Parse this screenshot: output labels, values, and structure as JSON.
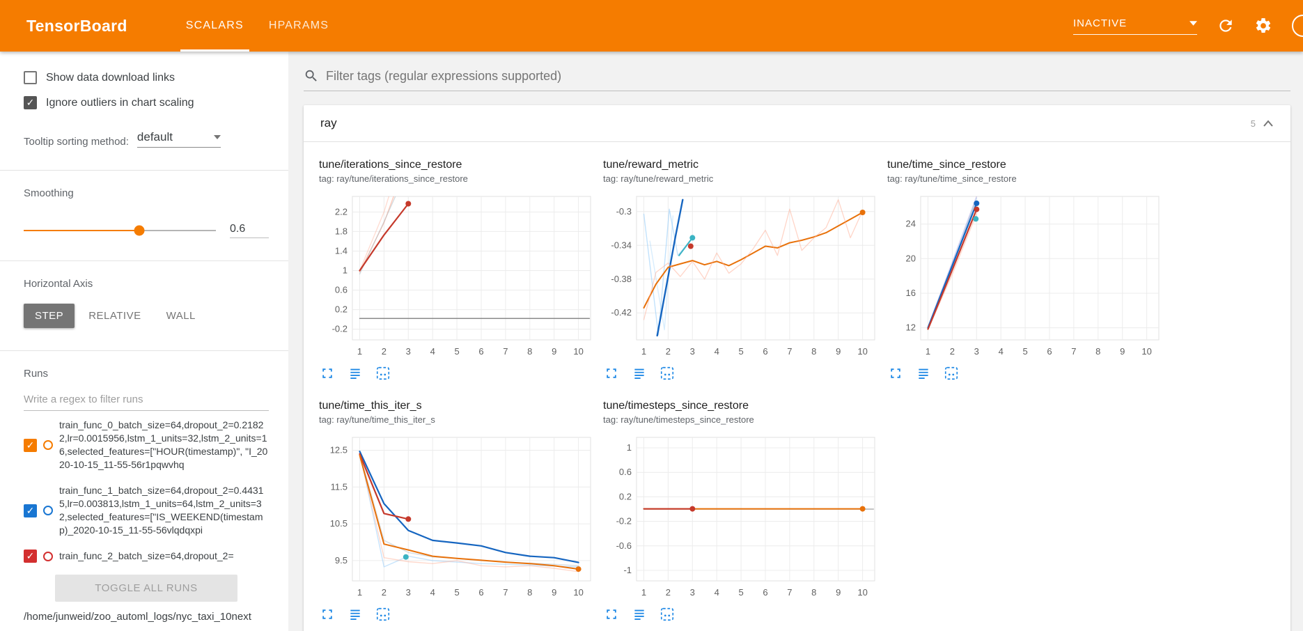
{
  "app": {
    "title": "TensorBoard",
    "tabs": [
      {
        "label": "SCALARS",
        "active": true
      },
      {
        "label": "HPARAMS",
        "active": false
      }
    ],
    "status_select": "INACTIVE"
  },
  "theme": {
    "header_bg": "#f57c00",
    "accent": "#f57c00",
    "icon_blue": "#1e88e5"
  },
  "sidebar": {
    "checkboxes": [
      {
        "label": "Show data download links",
        "checked": false
      },
      {
        "label": "Ignore outliers in chart scaling",
        "checked": true
      }
    ],
    "tooltip_sort": {
      "label": "Tooltip sorting method:",
      "value": "default"
    },
    "smoothing": {
      "label": "Smoothing",
      "value": "0.6"
    },
    "horizontal_axis": {
      "label": "Horizontal Axis",
      "options": [
        "STEP",
        "RELATIVE",
        "WALL"
      ],
      "selected": "STEP"
    },
    "runs": {
      "label": "Runs",
      "filter_placeholder": "Write a regex to filter runs",
      "items": [
        {
          "name": "train_func_0_batch_size=64,dropout_2=0.21822,lr=0.0015956,lstm_1_units=32,lstm_2_units=16,selected_features=[\"HOUR(timestamp)\", \"I_2020-10-15_11-55-56r1pqwvhq",
          "color": "#f57c00",
          "checked": true
        },
        {
          "name": "train_func_1_batch_size=64,dropout_2=0.44315,lr=0.003813,lstm_1_units=64,lstm_2_units=32,selected_features=[\"IS_WEEKEND(timestamp)_2020-10-15_11-55-56vlqdqxpi",
          "color": "#1976d2",
          "checked": true
        },
        {
          "name": "train_func_2_batch_size=64,dropout_2=",
          "color": "#d32f2f",
          "checked": true
        }
      ],
      "toggle_all_label": "TOGGLE ALL RUNS",
      "log_path": "/home/junweid/zoo_automl_logs/nyc_taxi_10next"
    }
  },
  "main": {
    "filter_placeholder": "Filter tags (regular expressions supported)",
    "section": {
      "name": "ray",
      "count": "5"
    }
  },
  "chart_data": [
    {
      "type": "line",
      "title": "tune/iterations_since_restore",
      "tag": "tag: ray/tune/iterations_since_restore",
      "grid": true,
      "xlim": [
        0.7,
        10.5
      ],
      "ylim": [
        -0.42,
        2.52
      ],
      "xticks": [
        "1",
        "2",
        "3",
        "4",
        "5",
        "6",
        "7",
        "8",
        "9",
        "10"
      ],
      "yticks": [
        "-0.2",
        "0.2",
        "0.6",
        "1",
        "1.4",
        "1.8",
        "2.2"
      ],
      "series": [
        {
          "name": "run0-raw",
          "color": "#ff8a65",
          "opacity": 0.45,
          "width": 1.4,
          "points": [
            [
              1,
              0.97
            ],
            [
              2,
              1.98
            ],
            [
              2.75,
              3
            ]
          ]
        },
        {
          "name": "run0-raw-b",
          "color": "#ffab91",
          "opacity": 0.4,
          "width": 1.4,
          "points": [
            [
              1,
              1
            ],
            [
              2,
              2.2
            ],
            [
              2.5,
              3
            ]
          ]
        },
        {
          "name": "run1-raw",
          "color": "#b0bec5",
          "opacity": 0.55,
          "width": 1.4,
          "points": [
            [
              1,
              0.93
            ],
            [
              2,
              2.0
            ],
            [
              2.9,
              3
            ]
          ]
        },
        {
          "name": "run0-smoothed",
          "color": "#c5392b",
          "opacity": 1,
          "width": 2.2,
          "points": [
            [
              1,
              1
            ],
            [
              2,
              1.73
            ],
            [
              3,
              2.37
            ]
          ]
        },
        {
          "name": "flat-run",
          "color": "#8a8a8a",
          "opacity": 1,
          "width": 1.5,
          "points": [
            [
              1,
              0.02
            ],
            [
              10.45,
              0.02
            ]
          ]
        }
      ],
      "markers": [
        {
          "x": 3,
          "y": 2.37,
          "color": "#c5392b"
        }
      ]
    },
    {
      "type": "line",
      "title": "tune/reward_metric",
      "tag": "tag: ray/tune/reward_metric",
      "grid": true,
      "xlim": [
        0.7,
        10.5
      ],
      "ylim": [
        -0.452,
        -0.282
      ],
      "xticks": [
        "1",
        "2",
        "3",
        "4",
        "5",
        "6",
        "7",
        "8",
        "9",
        "10"
      ],
      "yticks": [
        "-0.42",
        "-0.38",
        "-0.34",
        "-0.3"
      ],
      "series": [
        {
          "name": "run1-raw",
          "color": "#90caf9",
          "opacity": 0.55,
          "width": 1.4,
          "points": [
            [
              1,
              -0.303
            ],
            [
              1.6,
              -0.446
            ],
            [
              2.05,
              -0.297
            ],
            [
              2.4,
              -0.352
            ],
            [
              3,
              -0.331
            ]
          ]
        },
        {
          "name": "run1-raw-b",
          "color": "#90caf9",
          "opacity": 0.35,
          "width": 1.4,
          "points": [
            [
              1.25,
              -0.335
            ],
            [
              1.85,
              -0.44
            ],
            [
              2.2,
              -0.305
            ]
          ]
        },
        {
          "name": "run1-smoothed",
          "color": "#1565c0",
          "opacity": 1,
          "width": 2.4,
          "points": [
            [
              1.55,
              -0.447
            ],
            [
              1.95,
              -0.385
            ],
            [
              2.3,
              -0.33
            ],
            [
              2.6,
              -0.286
            ]
          ]
        },
        {
          "name": "run2-smoothed",
          "color": "#3bb3c3",
          "opacity": 1,
          "width": 2,
          "points": [
            [
              2.45,
              -0.352
            ],
            [
              3,
              -0.331
            ]
          ]
        },
        {
          "name": "run0-smoothed",
          "color": "#e8710a",
          "opacity": 1,
          "width": 2,
          "points": [
            [
              1,
              -0.414
            ],
            [
              1.5,
              -0.386
            ],
            [
              2,
              -0.366
            ],
            [
              2.5,
              -0.362
            ],
            [
              3,
              -0.358
            ],
            [
              3.5,
              -0.363
            ],
            [
              4,
              -0.359
            ],
            [
              4.5,
              -0.364
            ],
            [
              5,
              -0.357
            ],
            [
              5.5,
              -0.349
            ],
            [
              6,
              -0.341
            ],
            [
              6.5,
              -0.343
            ],
            [
              7,
              -0.337
            ],
            [
              7.5,
              -0.334
            ],
            [
              8,
              -0.33
            ],
            [
              8.5,
              -0.325
            ],
            [
              9,
              -0.317
            ],
            [
              9.5,
              -0.309
            ],
            [
              10,
              -0.301
            ]
          ]
        },
        {
          "name": "run0-raw",
          "color": "#ffab91",
          "opacity": 0.5,
          "width": 1.3,
          "points": [
            [
              1,
              -0.428
            ],
            [
              1.5,
              -0.372
            ],
            [
              2,
              -0.361
            ],
            [
              2.5,
              -0.377
            ],
            [
              3,
              -0.359
            ],
            [
              3.5,
              -0.38
            ],
            [
              4,
              -0.349
            ],
            [
              4.5,
              -0.373
            ],
            [
              5,
              -0.362
            ],
            [
              5.5,
              -0.344
            ],
            [
              6,
              -0.322
            ],
            [
              6.5,
              -0.352
            ],
            [
              7,
              -0.297
            ],
            [
              7.5,
              -0.346
            ],
            [
              8,
              -0.331
            ],
            [
              8.5,
              -0.319
            ],
            [
              9,
              -0.286
            ],
            [
              9.5,
              -0.331
            ],
            [
              10,
              -0.299
            ]
          ]
        }
      ],
      "markers": [
        {
          "x": 2.93,
          "y": -0.341,
          "color": "#c5392b"
        },
        {
          "x": 3,
          "y": -0.331,
          "color": "#3bb3c3"
        },
        {
          "x": 10,
          "y": -0.301,
          "color": "#e8710a"
        }
      ]
    },
    {
      "type": "line",
      "title": "tune/time_since_restore",
      "tag": "tag: ray/tune/time_since_restore",
      "grid": true,
      "xlim": [
        0.7,
        10.5
      ],
      "ylim": [
        10.6,
        27.2
      ],
      "xticks": [
        "1",
        "2",
        "3",
        "4",
        "5",
        "6",
        "7",
        "8",
        "9",
        "10"
      ],
      "yticks": [
        "12",
        "16",
        "20",
        "24"
      ],
      "series": [
        {
          "name": "raw-a",
          "color": "#b39ddb",
          "opacity": 0.45,
          "width": 1.6,
          "points": [
            [
              1,
              12.1
            ],
            [
              2,
              19.6
            ],
            [
              3,
              27.2
            ]
          ]
        },
        {
          "name": "raw-b",
          "color": "#9e9e9e",
          "opacity": 0.5,
          "width": 1.4,
          "points": [
            [
              1,
              11.95
            ],
            [
              2,
              19.0
            ],
            [
              2.95,
              26.6
            ]
          ]
        },
        {
          "name": "raw-c",
          "color": "#ffab91",
          "opacity": 0.45,
          "width": 1.6,
          "points": [
            [
              1,
              11.8
            ],
            [
              2,
              18.2
            ],
            [
              3,
              25.2
            ]
          ]
        },
        {
          "name": "raw-d",
          "color": "#90caf9",
          "opacity": 0.45,
          "width": 1.4,
          "points": [
            [
              1,
              12.05
            ],
            [
              2,
              19.4
            ],
            [
              3,
              27.0
            ]
          ]
        },
        {
          "name": "run1-smoothed",
          "color": "#1565c0",
          "opacity": 1,
          "width": 2.2,
          "points": [
            [
              1,
              12.0
            ],
            [
              2,
              19.2
            ],
            [
              3,
              26.4
            ]
          ]
        },
        {
          "name": "run0-smoothed",
          "color": "#c5392b",
          "opacity": 1,
          "width": 2.2,
          "points": [
            [
              1,
              11.85
            ],
            [
              2,
              18.7
            ],
            [
              3,
              25.7
            ]
          ]
        }
      ],
      "markers": [
        {
          "x": 3,
          "y": 26.4,
          "color": "#1565c0"
        },
        {
          "x": 3,
          "y": 25.7,
          "color": "#c5392b"
        },
        {
          "x": 2.97,
          "y": 24.6,
          "color": "#3bb3c3"
        }
      ]
    },
    {
      "type": "line",
      "title": "tune/time_this_iter_s",
      "tag": "tag: ray/tune/time_this_iter_s",
      "grid": true,
      "xlim": [
        0.7,
        10.5
      ],
      "ylim": [
        8.95,
        12.85
      ],
      "xticks": [
        "1",
        "2",
        "3",
        "4",
        "5",
        "6",
        "7",
        "8",
        "9",
        "10"
      ],
      "yticks": [
        "9.5",
        "10.5",
        "11.5",
        "12.5"
      ],
      "series": [
        {
          "name": "run1-raw",
          "color": "#90caf9",
          "opacity": 0.5,
          "width": 1.4,
          "points": [
            [
              1,
              12.45
            ],
            [
              2,
              9.33
            ],
            [
              3,
              9.62
            ],
            [
              4,
              9.5
            ],
            [
              5,
              9.46
            ],
            [
              6,
              9.42
            ],
            [
              7,
              9.4
            ],
            [
              8,
              9.38
            ],
            [
              9,
              9.35
            ],
            [
              10,
              9.33
            ]
          ]
        },
        {
          "name": "run0-raw",
          "color": "#ffab91",
          "opacity": 0.45,
          "width": 1.4,
          "points": [
            [
              1,
              12.4
            ],
            [
              2,
              9.58
            ],
            [
              3,
              9.47
            ],
            [
              4,
              9.42
            ],
            [
              5,
              9.5
            ],
            [
              6,
              9.36
            ],
            [
              7,
              9.33
            ],
            [
              8,
              9.36
            ],
            [
              9,
              9.29
            ],
            [
              10,
              9.2
            ]
          ]
        },
        {
          "name": "raw-gray",
          "color": "#b0bec5",
          "opacity": 0.5,
          "width": 1.4,
          "points": [
            [
              1,
              12.42
            ],
            [
              2,
              10.05
            ],
            [
              3,
              9.72
            ],
            [
              4,
              9.6
            ],
            [
              5,
              9.56
            ],
            [
              6,
              9.5
            ],
            [
              7,
              9.46
            ],
            [
              8,
              9.43
            ],
            [
              9,
              9.4
            ],
            [
              10,
              9.36
            ]
          ]
        },
        {
          "name": "run1-smoothed",
          "color": "#1565c0",
          "opacity": 1,
          "width": 2.2,
          "points": [
            [
              1,
              12.47
            ],
            [
              2,
              11.05
            ],
            [
              3,
              10.32
            ],
            [
              4,
              10.05
            ],
            [
              5,
              9.98
            ],
            [
              6,
              9.9
            ],
            [
              7,
              9.72
            ],
            [
              8,
              9.62
            ],
            [
              9,
              9.58
            ],
            [
              10,
              9.45
            ]
          ]
        },
        {
          "name": "run-red-smoothed",
          "color": "#c5392b",
          "opacity": 1,
          "width": 2.2,
          "points": [
            [
              1,
              12.4
            ],
            [
              2,
              10.78
            ],
            [
              3,
              10.63
            ]
          ]
        },
        {
          "name": "run0-smoothed",
          "color": "#e8710a",
          "opacity": 1,
          "width": 2,
          "points": [
            [
              1,
              12.36
            ],
            [
              2,
              9.95
            ],
            [
              3,
              9.79
            ],
            [
              4,
              9.62
            ],
            [
              5,
              9.56
            ],
            [
              6,
              9.51
            ],
            [
              7,
              9.46
            ],
            [
              8,
              9.42
            ],
            [
              9,
              9.36
            ],
            [
              10,
              9.27
            ]
          ]
        }
      ],
      "markers": [
        {
          "x": 3,
          "y": 10.63,
          "color": "#c5392b"
        },
        {
          "x": 2.9,
          "y": 9.6,
          "color": "#3bb3c3"
        },
        {
          "x": 10,
          "y": 9.27,
          "color": "#e8710a"
        }
      ]
    },
    {
      "type": "line",
      "title": "tune/timesteps_since_restore",
      "tag": "tag: ray/tune/timesteps_since_restore",
      "grid": true,
      "xlim": [
        0.7,
        10.5
      ],
      "ylim": [
        -1.17,
        1.17
      ],
      "xticks": [
        "1",
        "2",
        "3",
        "4",
        "5",
        "6",
        "7",
        "8",
        "9",
        "10"
      ],
      "yticks": [
        "-1",
        "-0.6",
        "-0.2",
        "0.2",
        "0.6",
        "1"
      ],
      "series": [
        {
          "name": "flat-gray",
          "color": "#9e9e9e",
          "opacity": 0.8,
          "width": 1.4,
          "points": [
            [
              1,
              0
            ],
            [
              10.45,
              0
            ]
          ]
        },
        {
          "name": "run0-smoothed",
          "color": "#e8710a",
          "opacity": 1,
          "width": 2,
          "points": [
            [
              1,
              0.005
            ],
            [
              10,
              0.005
            ]
          ]
        },
        {
          "name": "run-red-smoothed",
          "color": "#c5392b",
          "opacity": 1,
          "width": 2,
          "points": [
            [
              1,
              0.005
            ],
            [
              3,
              0.005
            ]
          ]
        }
      ],
      "markers": [
        {
          "x": 3,
          "y": 0.005,
          "color": "#c5392b"
        },
        {
          "x": 10,
          "y": 0.005,
          "color": "#e8710a"
        }
      ]
    }
  ]
}
